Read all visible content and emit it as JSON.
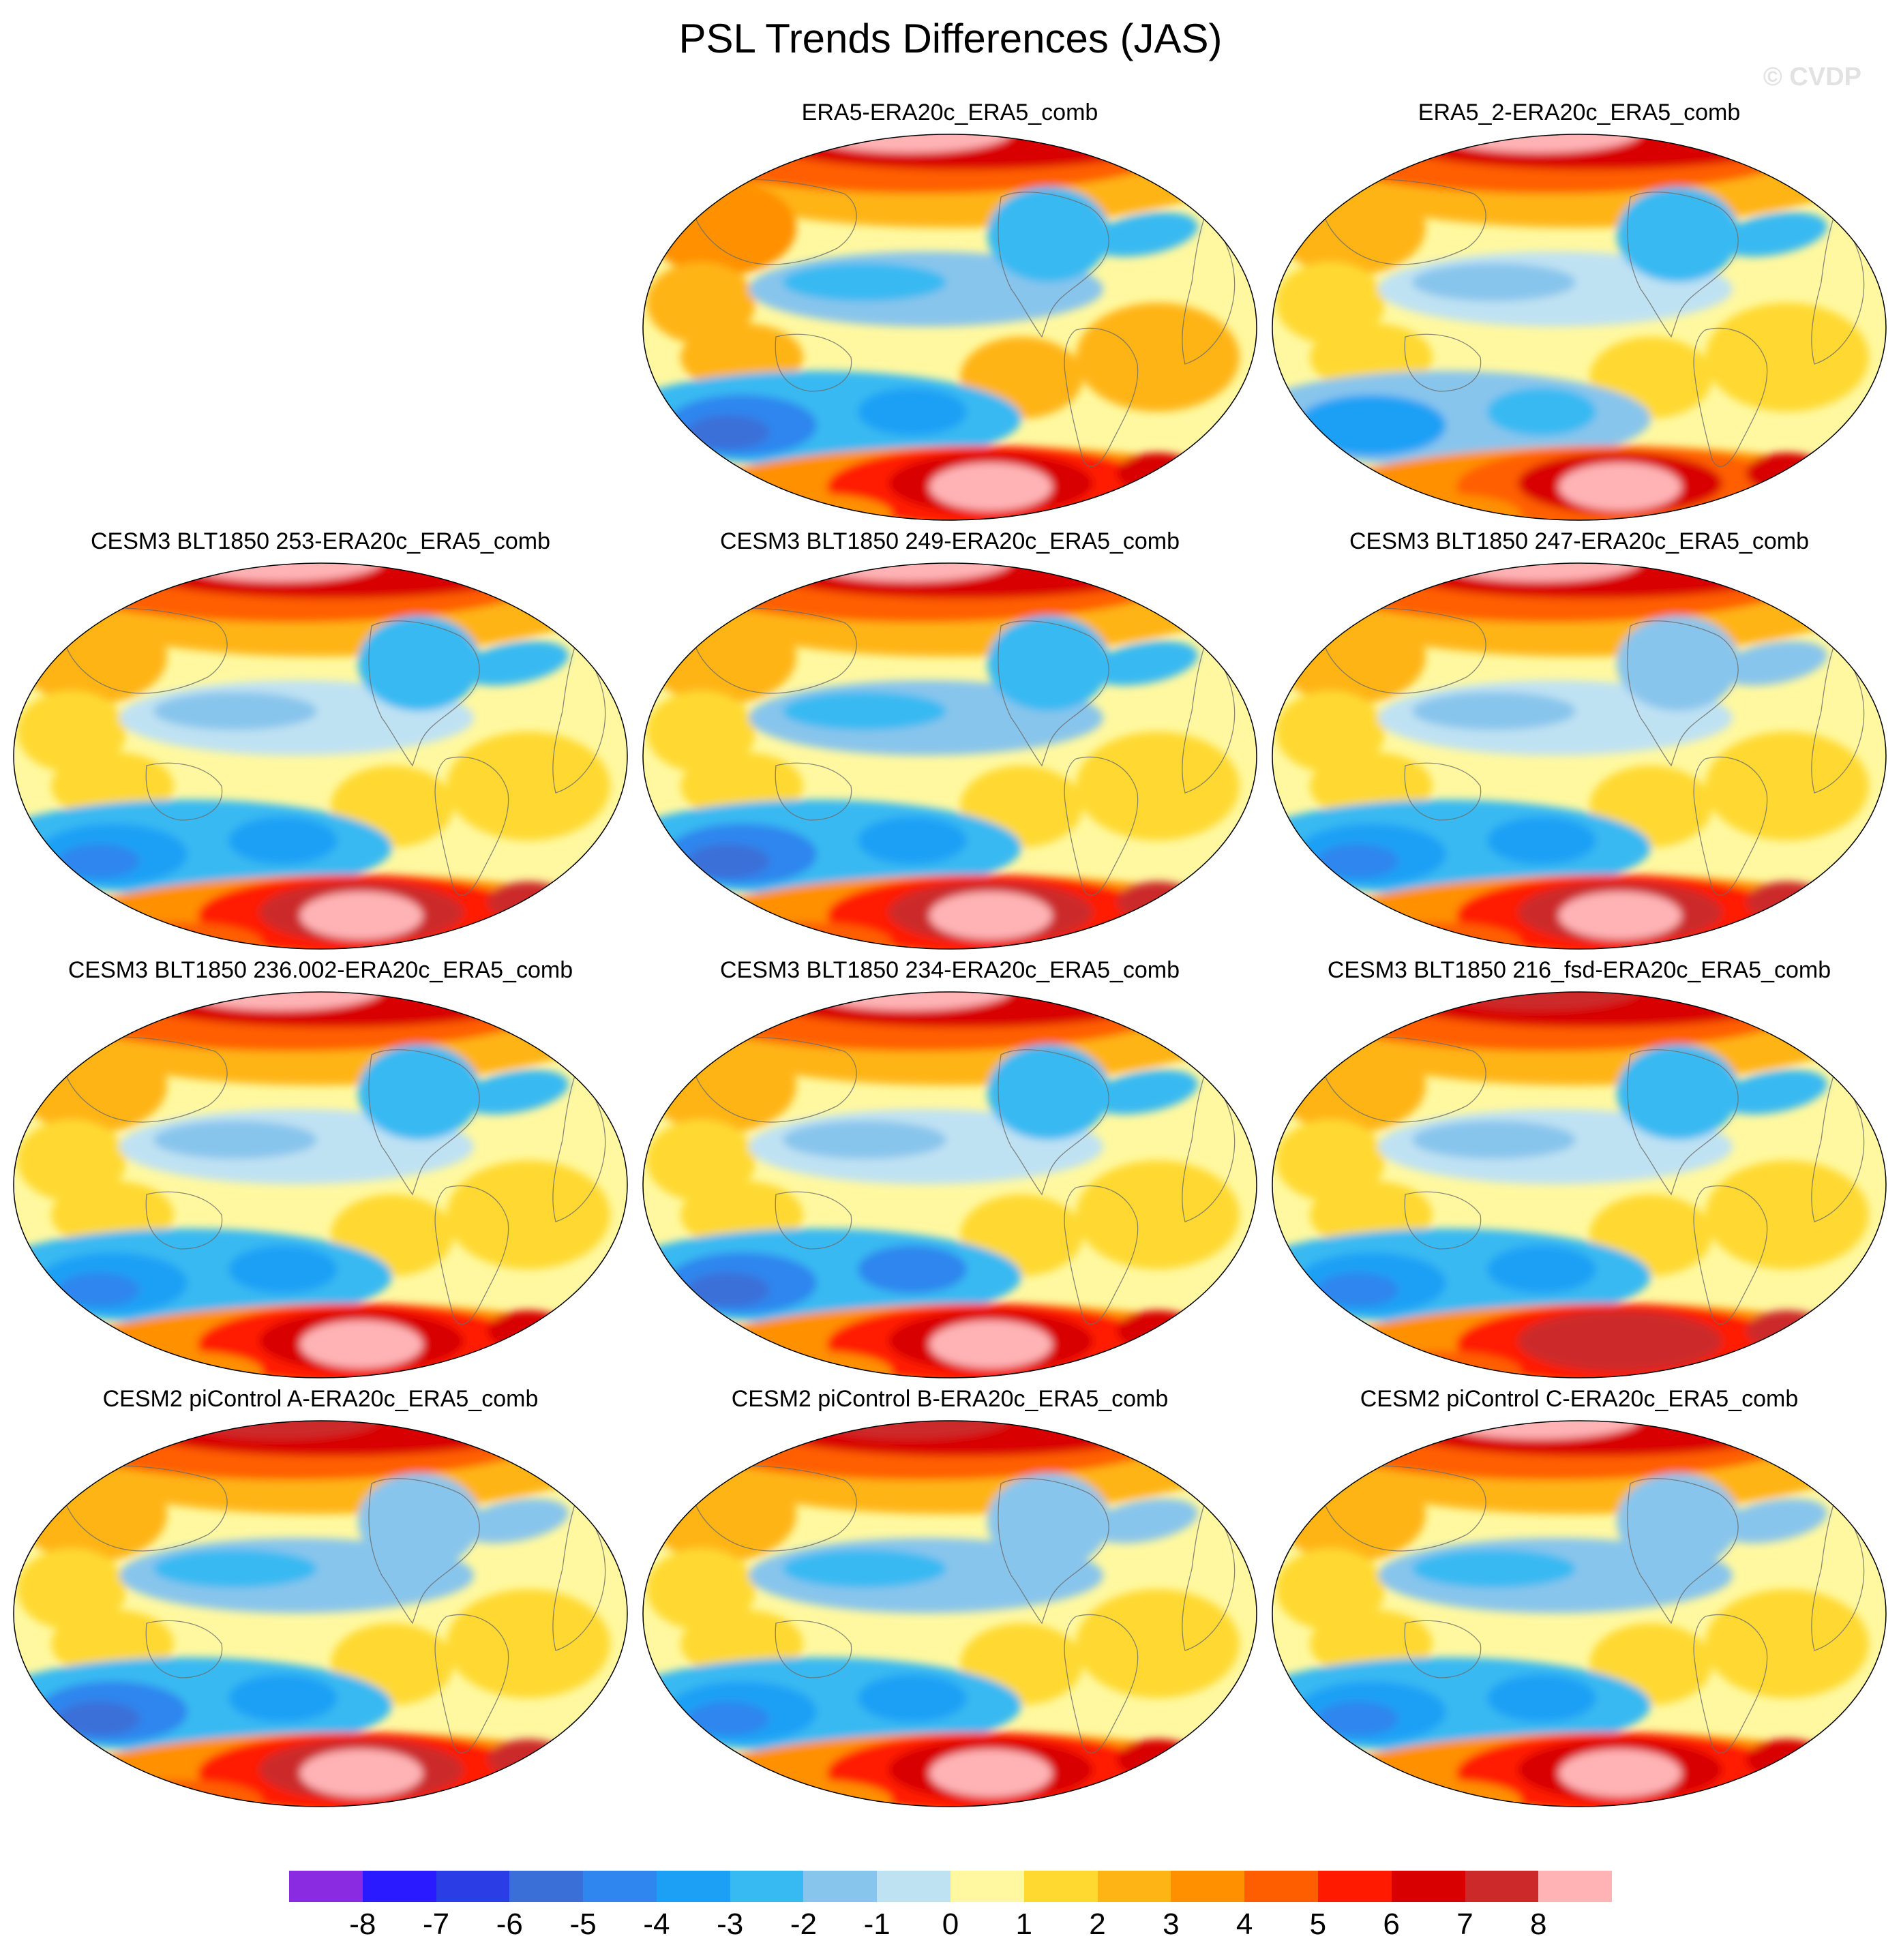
{
  "title": "PSL Trends Differences (JAS)",
  "credit": "© CVDP",
  "panels": [
    {
      "title": "ERA5-ERA20c_ERA5_comb",
      "col": 1,
      "row": 0,
      "nh": 6.5,
      "pole": 8,
      "sh": 6.5,
      "ant": 8,
      "trop": -1.5,
      "south_trough": -5.5,
      "na": -2.5,
      "ind": 2.5
    },
    {
      "title": "ERA5_2-ERA20c_ERA5_comb",
      "col": 2,
      "row": 0,
      "nh": 6,
      "pole": 8,
      "sh": 6,
      "ant": 8,
      "trop": -1,
      "south_trough": -4,
      "na": -2.5,
      "ind": 1.5
    },
    {
      "title": "CESM3 BLT1850 253-ERA20c_ERA5_comb",
      "col": 0,
      "row": 1,
      "nh": 6.5,
      "pole": 8,
      "sh": 7,
      "ant": 8,
      "trop": -1,
      "south_trough": -5,
      "na": -2.5,
      "ind": 1
    },
    {
      "title": "CESM3 BLT1850 249-ERA20c_ERA5_comb",
      "col": 1,
      "row": 1,
      "nh": 6.5,
      "pole": 8,
      "sh": 7,
      "ant": 8,
      "trop": -1.5,
      "south_trough": -5.5,
      "na": -2.5,
      "ind": 1
    },
    {
      "title": "CESM3 BLT1850 247-ERA20c_ERA5_comb",
      "col": 2,
      "row": 1,
      "nh": 6.5,
      "pole": 8,
      "sh": 7,
      "ant": 8,
      "trop": -1,
      "south_trough": -5,
      "na": -2,
      "ind": 1.5
    },
    {
      "title": "CESM3 BLT1850 236.002-ERA20c_ERA5_comb",
      "col": 0,
      "row": 2,
      "nh": 6.5,
      "pole": 8,
      "sh": 6.5,
      "ant": 8,
      "trop": -1,
      "south_trough": -5,
      "na": -2.5,
      "ind": 1.5
    },
    {
      "title": "CESM3 BLT1850 234-ERA20c_ERA5_comb",
      "col": 1,
      "row": 2,
      "nh": 6.5,
      "pole": 8,
      "sh": 6.5,
      "ant": 8,
      "trop": -1,
      "south_trough": -6,
      "na": -2.5,
      "ind": 1
    },
    {
      "title": "CESM3 BLT1850 216_fsd-ERA20c_ERA5_comb",
      "col": 2,
      "row": 2,
      "nh": 6.5,
      "pole": 7,
      "sh": 7,
      "ant": 7,
      "trop": -1,
      "south_trough": -4.5,
      "na": -2.5,
      "ind": 1.5
    },
    {
      "title": "CESM2 piControl A-ERA20c_ERA5_comb",
      "col": 0,
      "row": 3,
      "nh": 6.5,
      "pole": 7,
      "sh": 7,
      "ant": 8,
      "trop": -2,
      "south_trough": -5.5,
      "na": -1.5,
      "ind": 1.5
    },
    {
      "title": "CESM2 piControl B-ERA20c_ERA5_comb",
      "col": 1,
      "row": 3,
      "nh": 6,
      "pole": 7,
      "sh": 6.5,
      "ant": 8,
      "trop": -1.5,
      "south_trough": -4.5,
      "na": -1.5,
      "ind": 1.5
    },
    {
      "title": "CESM2 piControl C-ERA20c_ERA5_comb",
      "col": 2,
      "row": 3,
      "nh": 6,
      "pole": 8,
      "sh": 6.5,
      "ant": 8,
      "trop": -1.5,
      "south_trough": -5,
      "na": -2,
      "ind": 1.5
    }
  ],
  "colorbar": {
    "colors": [
      "#8a2be2",
      "#2a1aff",
      "#2b3ee6",
      "#3a6fd8",
      "#2f86ee",
      "#1ca0f5",
      "#37b9f2",
      "#88c5ec",
      "#bfe2f3",
      "#fff8a0",
      "#ffd930",
      "#ffb416",
      "#ff9000",
      "#ff5e00",
      "#ff1a00",
      "#d80000",
      "#cc2a2a",
      "#ffb3b5"
    ],
    "levels": [
      "-8",
      "-7",
      "-6",
      "-5",
      "-4",
      "-3",
      "-2",
      "-1",
      "0",
      "1",
      "2",
      "3",
      "4",
      "5",
      "6",
      "7",
      "8"
    ],
    "min": -8.5,
    "max": 8.5
  }
}
